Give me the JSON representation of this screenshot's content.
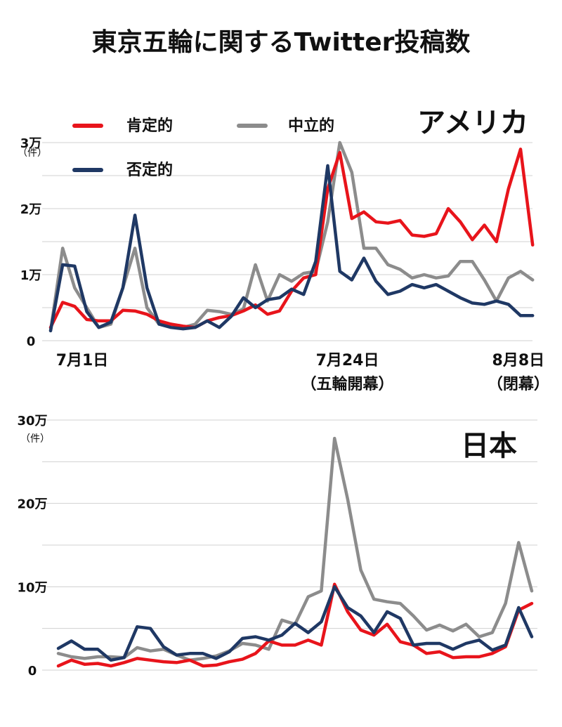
{
  "title": "東京五輪に関するTwitter投稿数",
  "colors": {
    "positive": "#e8141b",
    "neutral": "#8c8c8c",
    "negative": "#1f3864",
    "grid": "#d0d0d0"
  },
  "legend": [
    {
      "label": "肯定的",
      "key": "positive"
    },
    {
      "label": "中立的",
      "key": "neutral"
    },
    {
      "label": "否定的",
      "key": "negative"
    }
  ],
  "x_labels": [
    {
      "index": 0,
      "line1": "7月1日",
      "line2": ""
    },
    {
      "index": 23,
      "line1": "7月24日",
      "line2": "（五輪開幕）"
    },
    {
      "index": 38,
      "line1": "8月8日",
      "line2": "（閉幕）"
    }
  ],
  "chart_data": [
    {
      "type": "line",
      "title": "アメリカ",
      "unit": "（件）",
      "ylim": [
        0,
        30000
      ],
      "yticks": [
        {
          "value": 0,
          "label": "0"
        },
        {
          "value": 10000,
          "label": "1万"
        },
        {
          "value": 20000,
          "label": "2万"
        },
        {
          "value": 30000,
          "label": "3万"
        }
      ],
      "series": [
        {
          "name": "肯定的",
          "key": "positive",
          "values": [
            2000,
            5800,
            5200,
            3200,
            3000,
            3000,
            4600,
            4500,
            4000,
            3000,
            2500,
            2200,
            2000,
            3000,
            3500,
            3800,
            4500,
            5400,
            4000,
            4500,
            7500,
            9500,
            10000,
            23000,
            28500,
            18500,
            19500,
            18000,
            17800,
            18200,
            16000,
            15800,
            16200,
            20000,
            18000,
            15300,
            17500,
            15000,
            23000,
            29000,
            14500
          ],
          "unit_note": ""
        },
        {
          "name": "中立的",
          "key": "neutral",
          "values": [
            1500,
            14000,
            8000,
            5000,
            2000,
            2500,
            8000,
            14000,
            5000,
            2500,
            2500,
            2000,
            2500,
            4600,
            4400,
            4000,
            4800,
            11500,
            6000,
            10000,
            9000,
            10200,
            10500,
            18000,
            30000,
            25500,
            14000,
            14000,
            11500,
            10800,
            9500,
            10000,
            9500,
            9800,
            12000,
            12000,
            9200,
            6000,
            9500,
            10500,
            9200
          ]
        },
        {
          "name": "否定的",
          "key": "negative",
          "values": [
            1500,
            11500,
            11300,
            4400,
            2000,
            2800,
            8000,
            19000,
            8000,
            2500,
            2000,
            1800,
            2000,
            3000,
            2000,
            3700,
            6500,
            5000,
            6200,
            6500,
            7800,
            7000,
            12000,
            26500,
            10500,
            9200,
            12500,
            9000,
            7000,
            7500,
            8500,
            8000,
            8500,
            7500,
            6500,
            5700,
            5500,
            6000,
            5500,
            3800,
            3800
          ]
        }
      ]
    },
    {
      "type": "line",
      "title": "日本",
      "unit": "（件）",
      "ylim": [
        0,
        300000
      ],
      "yticks": [
        {
          "value": 0,
          "label": "0"
        },
        {
          "value": 100000,
          "label": "10万"
        },
        {
          "value": 200000,
          "label": "20万"
        },
        {
          "value": 300000,
          "label": "30万"
        }
      ],
      "series": [
        {
          "name": "肯定的",
          "key": "positive",
          "values": [
            5000,
            12000,
            7000,
            8000,
            5000,
            9000,
            14000,
            12000,
            10000,
            9000,
            12000,
            5000,
            6000,
            10000,
            13000,
            20000,
            35000,
            30000,
            30000,
            36000,
            30000,
            103000,
            70000,
            48000,
            42000,
            55000,
            34000,
            30000,
            20000,
            22000,
            15000,
            16000,
            16000,
            20000,
            28000,
            72000,
            80000
          ]
        },
        {
          "name": "中立的",
          "key": "neutral",
          "values": [
            20000,
            16000,
            14000,
            16000,
            16000,
            15000,
            27000,
            23000,
            25000,
            18000,
            12000,
            14000,
            17000,
            23000,
            32000,
            30000,
            25000,
            60000,
            55000,
            88000,
            95000,
            278000,
            205000,
            120000,
            85000,
            82000,
            80000,
            65000,
            48000,
            54000,
            47000,
            55000,
            40000,
            45000,
            80000,
            153000,
            95000
          ]
        },
        {
          "name": "否定的",
          "key": "negative",
          "values": [
            26000,
            35000,
            25000,
            25000,
            12000,
            15000,
            52000,
            50000,
            28000,
            18000,
            20000,
            20000,
            14000,
            22000,
            38000,
            40000,
            36000,
            42000,
            56000,
            45000,
            58000,
            100000,
            75000,
            65000,
            45000,
            70000,
            62000,
            30000,
            32000,
            32000,
            25000,
            32000,
            36000,
            24000,
            30000,
            75000,
            40000
          ]
        }
      ]
    }
  ]
}
